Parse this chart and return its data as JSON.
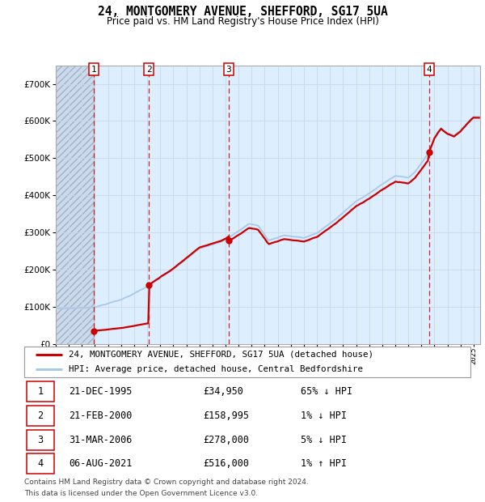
{
  "title": "24, MONTGOMERY AVENUE, SHEFFORD, SG17 5UA",
  "subtitle": "Price paid vs. HM Land Registry's House Price Index (HPI)",
  "sale_prices": [
    34950,
    158995,
    278000,
    516000
  ],
  "sale_labels": [
    "1",
    "2",
    "3",
    "4"
  ],
  "sale_years_f": [
    1995.917,
    2000.125,
    2006.25,
    2021.583
  ],
  "sale_info": [
    [
      "1",
      "21-DEC-1995",
      "£34,950",
      "65% ↓ HPI"
    ],
    [
      "2",
      "21-FEB-2000",
      "£158,995",
      "1% ↓ HPI"
    ],
    [
      "3",
      "31-MAR-2006",
      "£278,000",
      "5% ↓ HPI"
    ],
    [
      "4",
      "06-AUG-2021",
      "£516,000",
      "1% ↑ HPI"
    ]
  ],
  "hpi_color": "#aac8e8",
  "price_color": "#cc0000",
  "vline_color": "#cc0000",
  "grid_color": "#c8d8e8",
  "bg_color": "#ddeeff",
  "ylim": [
    0,
    750000
  ],
  "yticks": [
    0,
    100000,
    200000,
    300000,
    400000,
    500000,
    600000,
    700000
  ],
  "xlim_start": 1993.0,
  "xlim_end": 2025.5,
  "legend_label_price": "24, MONTGOMERY AVENUE, SHEFFORD, SG17 5UA (detached house)",
  "legend_label_hpi": "HPI: Average price, detached house, Central Bedfordshire",
  "footnote_line1": "Contains HM Land Registry data © Crown copyright and database right 2024.",
  "footnote_line2": "This data is licensed under the Open Government Licence v3.0."
}
